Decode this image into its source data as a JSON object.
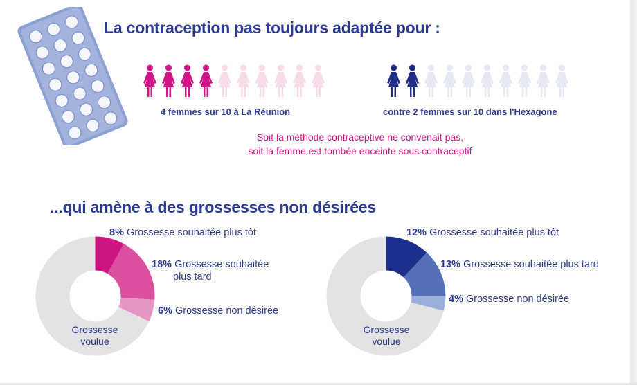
{
  "title_top": "La contraception pas toujours adaptée pour :",
  "left_group": {
    "caption": "4 femmes sur 10 à La Réunion",
    "highlighted": 4,
    "total": 10,
    "color_on": "#cf1487",
    "color_off": "#f8dbe9"
  },
  "right_group": {
    "caption": "contre 2 femmes sur 10 dans l'Hexagone",
    "highlighted": 2,
    "total": 10,
    "color_on": "#1f2d86",
    "color_off": "#e5e9f3"
  },
  "note_line1": "Soit la méthode contraceptive ne convenait pas,",
  "note_line2": "soit la femme est tombée enceinte sous contraceptif",
  "title_bottom": "...qui amène à des grossesses non désirées",
  "chart_data": [
    {
      "type": "pie",
      "donut": true,
      "center_label": [
        "Grossesse",
        "voulue"
      ],
      "slices": [
        {
          "label": "Grossesse souhaitée plus tôt",
          "pct_text": "8%",
          "value": 8,
          "color": "#cc1483"
        },
        {
          "label": "Grossesse souhaitée plus tard",
          "pct_text": "18%",
          "value": 18,
          "color": "#dc4f9e"
        },
        {
          "label": "Grossesse non désirée",
          "pct_text": "6%",
          "value": 6,
          "color": "#e795c2"
        },
        {
          "label": "Grossesse voulue",
          "pct_text": "",
          "value": 68,
          "color": "#e3e3e3"
        }
      ]
    },
    {
      "type": "pie",
      "donut": true,
      "center_label": [
        "Grossesse",
        "voulue"
      ],
      "slices": [
        {
          "label": "Grossesse souhaitée plus tôt",
          "pct_text": "12%",
          "value": 12,
          "color": "#1b2f8c"
        },
        {
          "label": "Grossesse souhaitée plus tard",
          "pct_text": "13%",
          "value": 13,
          "color": "#5470b6"
        },
        {
          "label": "Grossesse non désirée",
          "pct_text": "4%",
          "value": 4,
          "color": "#9ab0dc"
        },
        {
          "label": "Grossesse voulue",
          "pct_text": "",
          "value": 71,
          "color": "#e3e3e3"
        }
      ]
    }
  ],
  "labels_left": {
    "l1_pct": "8%",
    "l1_text": "Grossesse souhaitée plus tôt",
    "l2_pct": "18%",
    "l2_text_a": "Grossesse souhaitée",
    "l2_text_b": "plus tard",
    "l3_pct": "6%",
    "l3_text": "Grossesse non désirée",
    "center_a": "Grossesse",
    "center_b": "voulue"
  },
  "labels_right": {
    "l1_pct": "12%",
    "l1_text": "Grossesse souhaitée plus tôt",
    "l2_pct": "13%",
    "l2_text": "Grossesse souhaitée plus tard",
    "l3_pct": "4%",
    "l3_text": "Grossesse non désirée",
    "center_a": "Grossesse",
    "center_b": "voulue"
  }
}
